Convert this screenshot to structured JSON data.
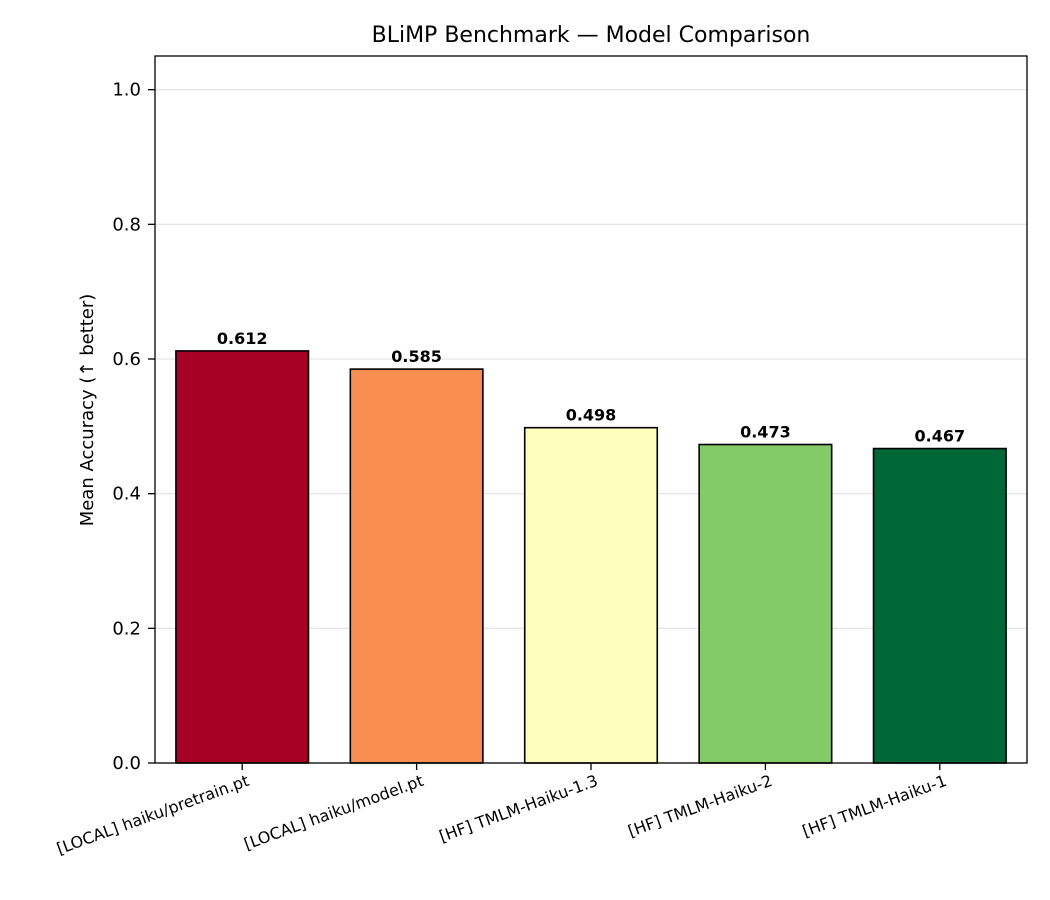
{
  "chart_data": {
    "type": "bar",
    "title": "BLiMP Benchmark — Model Comparison",
    "xlabel": "",
    "ylabel": "Mean Accuracy (↑ better)",
    "ylim": [
      0,
      1.05
    ],
    "yticks": [
      "0.0",
      "0.2",
      "0.4",
      "0.6",
      "0.8",
      "1.0"
    ],
    "grid": "y",
    "categories": [
      "[LOCAL] haiku/pretrain.pt",
      "[LOCAL] haiku/model.pt",
      "[HF] TMLM-Haiku-1.3",
      "[HF] TMLM-Haiku-2",
      "[HF] TMLM-Haiku-1"
    ],
    "values": [
      0.612,
      0.585,
      0.498,
      0.473,
      0.467
    ],
    "value_labels": [
      "0.612",
      "0.585",
      "0.498",
      "0.473",
      "0.467"
    ],
    "colors": [
      "#a50026",
      "#f98e52",
      "#fefebd",
      "#84ca66",
      "#006837"
    ]
  }
}
